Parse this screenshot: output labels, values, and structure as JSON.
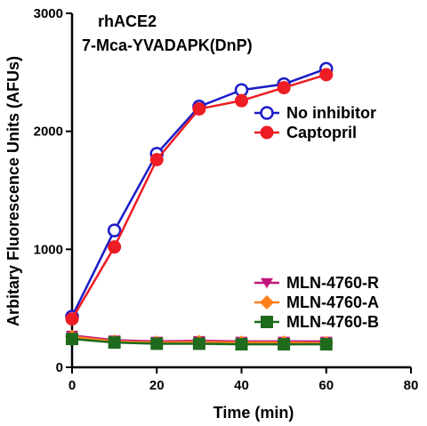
{
  "chart_data": {
    "type": "line",
    "annotations": [
      "rhACE2",
      "7-Mca-YVADAPK(DnP)"
    ],
    "xlabel": "Time (min)",
    "ylabel": "Arbitary Fluorescence Units (AFUs)",
    "xlim": [
      0,
      80
    ],
    "ylim": [
      0,
      3000
    ],
    "xticks": [
      "0",
      "20",
      "40",
      "60",
      "80"
    ],
    "yticks": [
      "0",
      "1000",
      "2000",
      "3000"
    ],
    "grid": false,
    "x": [
      0,
      10,
      20,
      30,
      40,
      50,
      60
    ],
    "series": [
      {
        "name": "No inhibitor",
        "color": "#1c1cc8",
        "marker": "open-circle",
        "legend_group": "upper",
        "values": [
          430,
          1160,
          1810,
          2210,
          2350,
          2400,
          2530
        ]
      },
      {
        "name": "Captopril",
        "color": "#ee1c24",
        "marker": "filled-circle",
        "legend_group": "upper",
        "values": [
          410,
          1020,
          1760,
          2190,
          2260,
          2370,
          2480
        ]
      },
      {
        "name": "MLN-4760-R",
        "color": "#c0147a",
        "marker": "triangle-down",
        "legend_group": "lower",
        "values": [
          270,
          230,
          220,
          225,
          220,
          220,
          220
        ]
      },
      {
        "name": "MLN-4760-A",
        "color": "#ff7f1a",
        "marker": "diamond",
        "legend_group": "lower",
        "values": [
          260,
          220,
          210,
          215,
          210,
          210,
          205
        ]
      },
      {
        "name": "MLN-4760-B",
        "color": "#1e6b1e",
        "marker": "square",
        "legend_group": "lower",
        "values": [
          240,
          210,
          200,
          200,
          195,
          195,
          195
        ]
      }
    ]
  }
}
